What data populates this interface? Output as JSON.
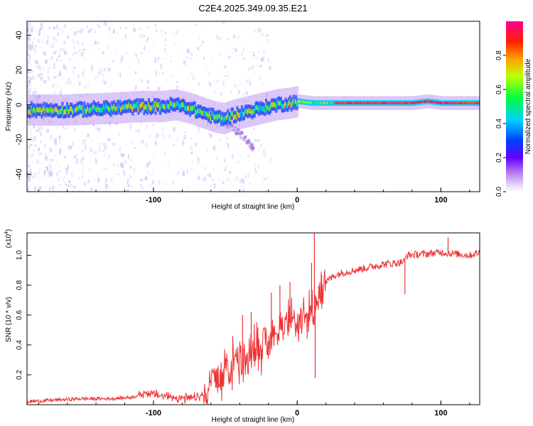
{
  "title": "C2E4.2025.349.09.35.E21",
  "chart_data": [
    {
      "type": "heatmap",
      "xlabel": "Height of straight line (km)",
      "ylabel": "Frequency (Hz)",
      "xlim": [
        -188,
        127
      ],
      "ylim": [
        -50,
        48
      ],
      "xticks": [
        -100,
        0,
        100
      ],
      "yticks": [
        -40,
        -20,
        0,
        20,
        40
      ],
      "colorbar": {
        "label": "Normalized spectral amplitude",
        "range": [
          0,
          1
        ],
        "ticks": [
          0.0,
          0.2,
          0.4,
          0.6,
          0.8
        ],
        "colors": [
          "#ffffff",
          "#c8a0f0",
          "#8000ff",
          "#0000ff",
          "#00ffff",
          "#00ff00",
          "#ffff00",
          "#ff8000",
          "#ff0000",
          "#ff0080"
        ]
      },
      "ridge": {
        "x": [
          -188,
          -160,
          -130,
          -110,
          -95,
          -85,
          -75,
          -65,
          -58,
          -52,
          -45,
          -35,
          -25,
          -15,
          -5,
          0,
          10,
          30,
          60,
          80,
          90,
          100,
          127
        ],
        "freq": [
          -3,
          -3,
          -2,
          -1,
          -1,
          0,
          -2,
          -5,
          -7,
          -8,
          -6,
          -4,
          -2,
          0,
          1,
          2,
          1,
          1,
          1,
          1,
          2,
          1,
          1
        ]
      },
      "tail": {
        "x": [
          -50,
          -42,
          -35,
          -30
        ],
        "freq": [
          -10,
          -15,
          -20,
          -25
        ]
      }
    },
    {
      "type": "line",
      "xlabel": "Height of straight line (km)",
      "ylabel": "SNR (10 * v/v)",
      "yscale_label": "(x10",
      "yscale_exp": "4",
      "yscale_close": ")",
      "xlim": [
        -188,
        127
      ],
      "ylim": [
        0,
        1.15
      ],
      "xticks": [
        -100,
        0,
        100
      ],
      "yticks": [
        0.2,
        0.4,
        0.6,
        0.8,
        1.0
      ],
      "ytick_labels": [
        "0.2",
        "0.4",
        "0.6",
        "0.8",
        "1.0"
      ],
      "color": "#ee3333",
      "series": {
        "name": "SNR",
        "x": [
          -188,
          -170,
          -150,
          -130,
          -115,
          -105,
          -95,
          -85,
          -75,
          -68,
          -62,
          -57,
          -52,
          -46,
          -40,
          -35,
          -30,
          -25,
          -20,
          -15,
          -10,
          -5,
          0,
          5,
          10,
          15,
          20,
          25,
          30,
          40,
          50,
          60,
          70,
          75,
          76,
          90,
          100,
          110,
          120,
          127
        ],
        "values": [
          0.02,
          0.03,
          0.04,
          0.04,
          0.05,
          0.08,
          0.06,
          0.05,
          0.04,
          0.05,
          0.1,
          0.18,
          0.22,
          0.26,
          0.28,
          0.3,
          0.33,
          0.38,
          0.42,
          0.48,
          0.52,
          0.55,
          0.56,
          0.58,
          0.62,
          0.7,
          0.82,
          0.86,
          0.88,
          0.9,
          0.92,
          0.94,
          0.95,
          0.96,
          1.0,
          1.01,
          1.02,
          1.01,
          1.0,
          1.02
        ]
      },
      "spikes": [
        {
          "x": -38,
          "value": 0.6
        },
        {
          "x": -32,
          "value": 0.62
        },
        {
          "x": -18,
          "value": 0.75
        },
        {
          "x": -12,
          "value": 0.8
        },
        {
          "x": -5,
          "value": 0.82
        },
        {
          "x": 10,
          "value": 0.95
        },
        {
          "x": 12,
          "value": 1.15
        },
        {
          "x": 12.5,
          "value": 0.18
        },
        {
          "x": 17,
          "value": 0.87
        },
        {
          "x": 75,
          "value": 0.74
        },
        {
          "x": 105,
          "value": 1.12
        }
      ]
    }
  ]
}
